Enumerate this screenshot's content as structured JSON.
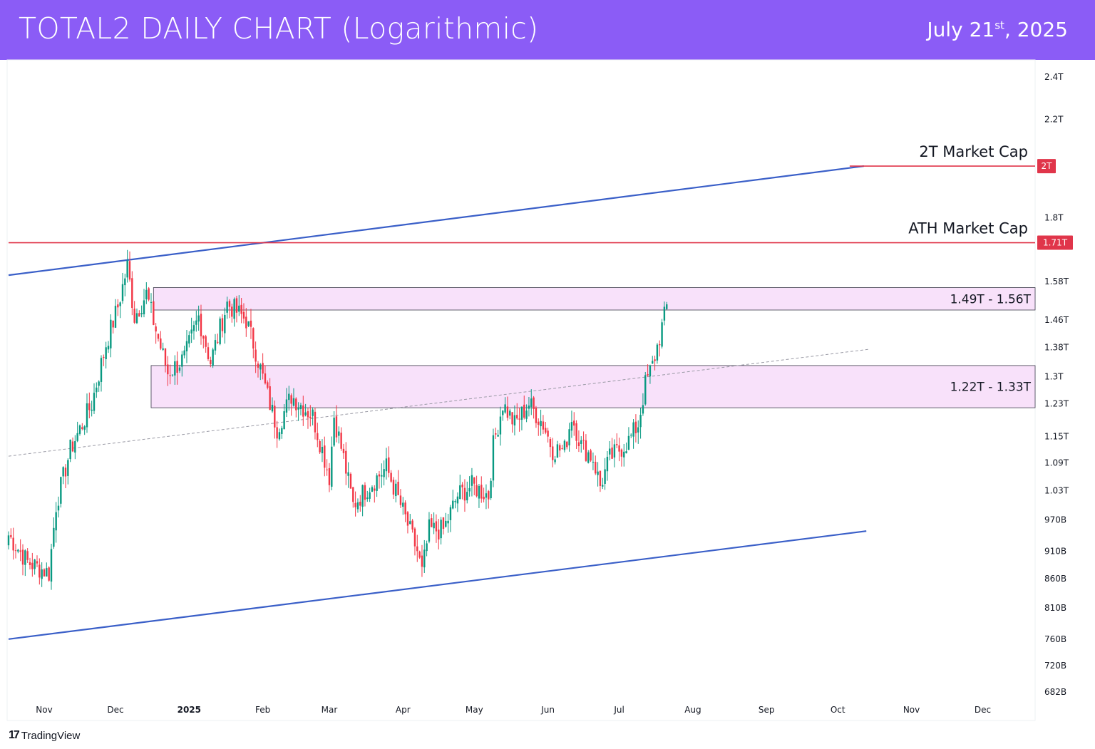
{
  "header": {
    "title": "TOTAL2 DAILY CHART (Logarithmic)",
    "date_main": "July 21",
    "date_suffix": "st",
    "date_year": ", 2025"
  },
  "footer": {
    "brand": "TradingView"
  },
  "chart_data": {
    "type": "candlestick",
    "title": "TOTAL2 DAILY CHART (Logarithmic)",
    "yscale": "log",
    "ylim_T": [
      0.665,
      2.5
    ],
    "xlim": [
      "2024-10-17",
      "2025-12-31"
    ],
    "colors": {
      "up": "#089981",
      "down": "#f23645",
      "channel": "#3a5fc8",
      "level": "#e0354a",
      "zone": "#f8e1fa"
    },
    "y_ticks": [
      "2.4T",
      "2.2T",
      "1.8T",
      "1.58T",
      "1.46T",
      "1.38T",
      "1.3T",
      "1.23T",
      "1.15T",
      "1.09T",
      "1.03T",
      "970B",
      "910B",
      "860B",
      "810B",
      "760B",
      "720B",
      "682B"
    ],
    "y_tick_values_T": [
      2.4,
      2.2,
      1.8,
      1.58,
      1.46,
      1.38,
      1.3,
      1.23,
      1.15,
      1.09,
      1.03,
      0.97,
      0.91,
      0.86,
      0.81,
      0.76,
      0.72,
      0.682
    ],
    "x_ticks": [
      "Nov",
      "Dec",
      "2025",
      "Feb",
      "Mar",
      "Apr",
      "May",
      "Jun",
      "Jul",
      "Aug",
      "Sep",
      "Oct",
      "Nov",
      "Dec"
    ],
    "x_tick_dates": [
      "2024-11-01",
      "2024-12-01",
      "2025-01-01",
      "2025-02-01",
      "2025-03-01",
      "2025-04-01",
      "2025-05-01",
      "2025-06-01",
      "2025-07-01",
      "2025-08-01",
      "2025-09-01",
      "2025-10-01",
      "2025-11-01",
      "2025-12-01"
    ],
    "price_path_T": [
      [
        "2024-10-17",
        0.94
      ],
      [
        "2024-10-25",
        0.89
      ],
      [
        "2024-11-03",
        0.87
      ],
      [
        "2024-11-06",
        1.0
      ],
      [
        "2024-11-12",
        1.12
      ],
      [
        "2024-11-21",
        1.23
      ],
      [
        "2024-11-27",
        1.39
      ],
      [
        "2024-12-02",
        1.5
      ],
      [
        "2024-12-06",
        1.63
      ],
      [
        "2024-12-09",
        1.47
      ],
      [
        "2024-12-14",
        1.54
      ],
      [
        "2024-12-18",
        1.43
      ],
      [
        "2024-12-23",
        1.31
      ],
      [
        "2024-12-30",
        1.35
      ],
      [
        "2025-01-05",
        1.47
      ],
      [
        "2025-01-10",
        1.34
      ],
      [
        "2025-01-17",
        1.51
      ],
      [
        "2025-01-25",
        1.46
      ],
      [
        "2025-01-29",
        1.37
      ],
      [
        "2025-02-03",
        1.25
      ],
      [
        "2025-02-07",
        1.17
      ],
      [
        "2025-02-13",
        1.25
      ],
      [
        "2025-02-22",
        1.2
      ],
      [
        "2025-02-26",
        1.12
      ],
      [
        "2025-03-01",
        1.06
      ],
      [
        "2025-03-03",
        1.2
      ],
      [
        "2025-03-07",
        1.1
      ],
      [
        "2025-03-11",
        1.0
      ],
      [
        "2025-03-16",
        1.03
      ],
      [
        "2025-03-25",
        1.08
      ],
      [
        "2025-03-31",
        1.0
      ],
      [
        "2025-04-07",
        0.91
      ],
      [
        "2025-04-09",
        0.87
      ],
      [
        "2025-04-12",
        0.95
      ],
      [
        "2025-04-18",
        0.95
      ],
      [
        "2025-04-24",
        1.02
      ],
      [
        "2025-04-30",
        1.04
      ],
      [
        "2025-05-07",
        1.02
      ],
      [
        "2025-05-09",
        1.13
      ],
      [
        "2025-05-13",
        1.23
      ],
      [
        "2025-05-18",
        1.18
      ],
      [
        "2025-05-24",
        1.23
      ],
      [
        "2025-05-30",
        1.18
      ],
      [
        "2025-06-03",
        1.12
      ],
      [
        "2025-06-08",
        1.12
      ],
      [
        "2025-06-11",
        1.2
      ],
      [
        "2025-06-15",
        1.13
      ],
      [
        "2025-06-20",
        1.1
      ],
      [
        "2025-06-23",
        1.04
      ],
      [
        "2025-06-27",
        1.1
      ],
      [
        "2025-07-05",
        1.14
      ],
      [
        "2025-07-09",
        1.18
      ],
      [
        "2025-07-12",
        1.28
      ],
      [
        "2025-07-15",
        1.33
      ],
      [
        "2025-07-18",
        1.41
      ],
      [
        "2025-07-21",
        1.5
      ]
    ],
    "channel_upper": [
      [
        "2024-10-17",
        1.6
      ],
      [
        "2025-10-12",
        2.0
      ]
    ],
    "channel_lower": [
      [
        "2024-10-17",
        0.76
      ],
      [
        "2025-10-13",
        0.948
      ]
    ],
    "midline_dashed": [
      [
        "2024-10-17",
        1.105
      ],
      [
        "2025-10-14",
        1.375
      ]
    ],
    "levels": [
      {
        "label": "2T Market Cap",
        "value_T": 2.0,
        "tag": "2T",
        "from": "2025-10-06"
      },
      {
        "label": "ATH Market Cap",
        "value_T": 1.71,
        "tag": "1.71T",
        "from": "2024-10-17"
      }
    ],
    "zones": [
      {
        "label": "1.49T - 1.56T",
        "low_T": 1.49,
        "high_T": 1.56,
        "from": "2024-12-17"
      },
      {
        "label": "1.22T - 1.33T",
        "low_T": 1.22,
        "high_T": 1.33,
        "from": "2024-12-16"
      }
    ]
  }
}
